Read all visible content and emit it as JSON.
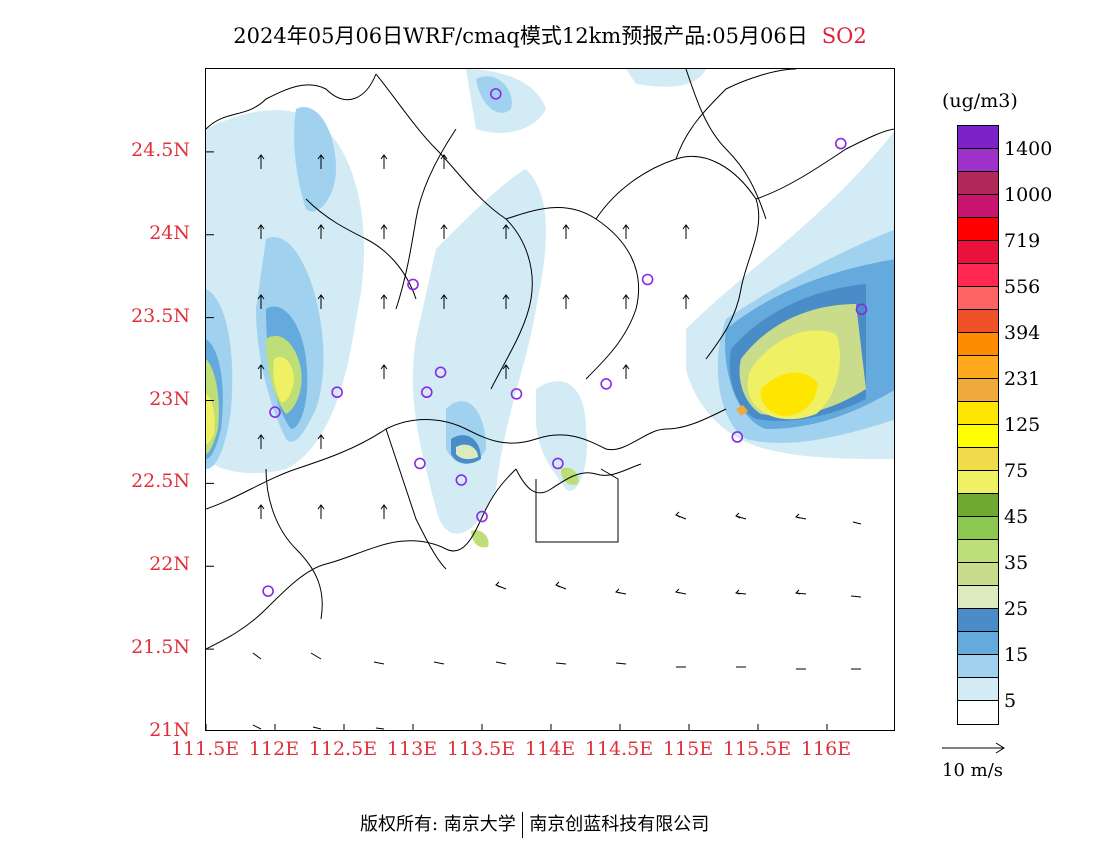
{
  "title": {
    "text": "2024年05月06日WRF/cmaq模式12km预报产品:05月06日",
    "pollutant": "SO2"
  },
  "axes": {
    "lat_labels": [
      "24.5N",
      "24N",
      "23.5N",
      "23N",
      "22.5N",
      "22N",
      "21.5N",
      "21N"
    ],
    "lat_values": [
      24.5,
      24.0,
      23.5,
      23.0,
      22.5,
      22.0,
      21.5,
      21.0
    ],
    "lon_labels": [
      "111.5E",
      "112E",
      "112.5E",
      "113E",
      "113.5E",
      "114E",
      "114.5E",
      "115E",
      "115.5E",
      "116E"
    ],
    "lon_values": [
      111.5,
      112.0,
      112.5,
      113.0,
      113.5,
      114.0,
      114.5,
      115.0,
      115.5,
      116.0
    ],
    "lat_range": [
      21.0,
      25.0
    ],
    "lon_range": [
      111.5,
      116.5
    ]
  },
  "legend": {
    "unit": "(ug/m3)",
    "labels": [
      "1400",
      "1000",
      "719",
      "556",
      "394",
      "231",
      "125",
      "75",
      "45",
      "35",
      "25",
      "15",
      "5"
    ],
    "colors_top_to_bottom": [
      "#7b22c8",
      "#9e32c8",
      "#b0285a",
      "#c8146e",
      "#ff0000",
      "#e8123c",
      "#ff2850",
      "#ff6464",
      "#f05028",
      "#ff8c00",
      "#ffaa1e",
      "#f0aa3c",
      "#ffe600",
      "#ffff00",
      "#f0dc4a",
      "#f0f064",
      "#6eaa32",
      "#8cc850",
      "#bede78",
      "#c8dc8c",
      "#dcebbe",
      "#4a8cc8",
      "#64aadc",
      "#a0d2f0",
      "#d2ebf5",
      "#ffffff"
    ]
  },
  "wind_reference": {
    "label": "10 m/s"
  },
  "stations": [
    {
      "lon": 113.6,
      "lat": 24.85
    },
    {
      "lon": 116.1,
      "lat": 24.55
    },
    {
      "lon": 113.0,
      "lat": 23.7
    },
    {
      "lon": 114.7,
      "lat": 23.73
    },
    {
      "lon": 116.25,
      "lat": 23.55
    },
    {
      "lon": 113.2,
      "lat": 23.17
    },
    {
      "lon": 113.1,
      "lat": 23.05
    },
    {
      "lon": 113.75,
      "lat": 23.04
    },
    {
      "lon": 114.4,
      "lat": 23.1
    },
    {
      "lon": 112.45,
      "lat": 23.05
    },
    {
      "lon": 112.0,
      "lat": 22.93
    },
    {
      "lon": 113.05,
      "lat": 22.62
    },
    {
      "lon": 113.35,
      "lat": 22.52
    },
    {
      "lon": 114.05,
      "lat": 22.62
    },
    {
      "lon": 113.5,
      "lat": 22.3
    },
    {
      "lon": 115.35,
      "lat": 22.78
    },
    {
      "lon": 111.95,
      "lat": 21.85
    }
  ],
  "footer": {
    "left": "版权所有: 南京大学",
    "right": "南京创蓝科技有限公司"
  }
}
